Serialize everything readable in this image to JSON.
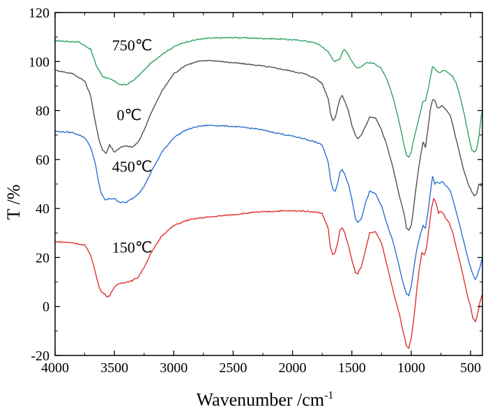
{
  "chart_data": {
    "type": "line",
    "title": "",
    "xlabel": "Wavenumber /cm",
    "xlabel_superscript": "-1",
    "ylabel": "T /%",
    "xlim": [
      4000,
      400
    ],
    "ylim": [
      -20,
      120
    ],
    "x_ticks": [
      "4000",
      "3500",
      "3000",
      "2500",
      "2000",
      "1500",
      "1000",
      "500"
    ],
    "y_ticks": [
      "-20",
      "0",
      "20",
      "40",
      "60",
      "80",
      "100",
      "120"
    ],
    "grid": false,
    "series": [
      {
        "name": "750℃",
        "color": "#2ca25f",
        "points": [
          [
            4000,
            108.5
          ],
          [
            3800,
            108
          ],
          [
            3700,
            105
          ],
          [
            3650,
            98
          ],
          [
            3600,
            94
          ],
          [
            3550,
            93
          ],
          [
            3500,
            92
          ],
          [
            3450,
            90.5
          ],
          [
            3400,
            90.5
          ],
          [
            3350,
            92
          ],
          [
            3300,
            94
          ],
          [
            3200,
            99
          ],
          [
            3100,
            103
          ],
          [
            3000,
            106
          ],
          [
            2900,
            108
          ],
          [
            2800,
            109
          ],
          [
            2700,
            109.5
          ],
          [
            2500,
            109.8
          ],
          [
            2300,
            109.5
          ],
          [
            2100,
            109.2
          ],
          [
            1900,
            108.5
          ],
          [
            1800,
            107.5
          ],
          [
            1750,
            106
          ],
          [
            1700,
            104
          ],
          [
            1660,
            101
          ],
          [
            1640,
            100
          ],
          [
            1600,
            101
          ],
          [
            1580,
            104
          ],
          [
            1560,
            105
          ],
          [
            1530,
            103
          ],
          [
            1500,
            100
          ],
          [
            1470,
            98
          ],
          [
            1450,
            97.5
          ],
          [
            1420,
            98
          ],
          [
            1380,
            99.5
          ],
          [
            1350,
            99.5
          ],
          [
            1300,
            99
          ],
          [
            1250,
            97
          ],
          [
            1200,
            92
          ],
          [
            1150,
            85
          ],
          [
            1100,
            75
          ],
          [
            1060,
            66
          ],
          [
            1040,
            62
          ],
          [
            1020,
            61
          ],
          [
            1000,
            63
          ],
          [
            980,
            68
          ],
          [
            950,
            74
          ],
          [
            920,
            80
          ],
          [
            900,
            84
          ],
          [
            880,
            84
          ],
          [
            860,
            88
          ],
          [
            840,
            93
          ],
          [
            820,
            98
          ],
          [
            800,
            97
          ],
          [
            780,
            96
          ],
          [
            760,
            95.5
          ],
          [
            740,
            96
          ],
          [
            720,
            96.5
          ],
          [
            700,
            96
          ],
          [
            680,
            95
          ],
          [
            650,
            94
          ],
          [
            620,
            91
          ],
          [
            600,
            88
          ],
          [
            560,
            80
          ],
          [
            530,
            73
          ],
          [
            510,
            68
          ],
          [
            490,
            64
          ],
          [
            470,
            63
          ],
          [
            450,
            64
          ],
          [
            430,
            69
          ],
          [
            410,
            78
          ],
          [
            400,
            80
          ]
        ]
      },
      {
        "name": "0℃",
        "color": "#505050",
        "points": [
          [
            4000,
            96.5
          ],
          [
            3850,
            95
          ],
          [
            3750,
            92
          ],
          [
            3700,
            86
          ],
          [
            3660,
            75
          ],
          [
            3630,
            68
          ],
          [
            3600,
            64
          ],
          [
            3570,
            62.5
          ],
          [
            3540,
            66
          ],
          [
            3500,
            63
          ],
          [
            3450,
            65
          ],
          [
            3400,
            65.5
          ],
          [
            3350,
            65
          ],
          [
            3300,
            67
          ],
          [
            3250,
            72
          ],
          [
            3200,
            78
          ],
          [
            3100,
            88
          ],
          [
            3000,
            95
          ],
          [
            2900,
            98.5
          ],
          [
            2800,
            100
          ],
          [
            2700,
            100.5
          ],
          [
            2500,
            99.5
          ],
          [
            2300,
            98.5
          ],
          [
            2100,
            97
          ],
          [
            1900,
            95
          ],
          [
            1800,
            93
          ],
          [
            1750,
            91
          ],
          [
            1700,
            85
          ],
          [
            1680,
            79
          ],
          [
            1660,
            76
          ],
          [
            1640,
            77
          ],
          [
            1620,
            81
          ],
          [
            1600,
            85
          ],
          [
            1580,
            86
          ],
          [
            1560,
            84
          ],
          [
            1530,
            80
          ],
          [
            1500,
            74
          ],
          [
            1470,
            70
          ],
          [
            1450,
            68.5
          ],
          [
            1420,
            70
          ],
          [
            1380,
            74
          ],
          [
            1350,
            77.5
          ],
          [
            1300,
            77
          ],
          [
            1250,
            72
          ],
          [
            1200,
            65
          ],
          [
            1150,
            56
          ],
          [
            1100,
            45
          ],
          [
            1060,
            38
          ],
          [
            1040,
            32
          ],
          [
            1020,
            31
          ],
          [
            1000,
            33
          ],
          [
            980,
            40
          ],
          [
            950,
            52
          ],
          [
            920,
            62
          ],
          [
            900,
            67
          ],
          [
            880,
            65
          ],
          [
            860,
            72
          ],
          [
            840,
            80
          ],
          [
            820,
            84.5
          ],
          [
            800,
            84
          ],
          [
            780,
            81
          ],
          [
            760,
            81
          ],
          [
            740,
            82
          ],
          [
            720,
            81
          ],
          [
            700,
            80
          ],
          [
            670,
            78
          ],
          [
            640,
            72
          ],
          [
            600,
            64
          ],
          [
            560,
            56
          ],
          [
            520,
            50
          ],
          [
            500,
            48
          ],
          [
            470,
            45
          ],
          [
            450,
            46
          ],
          [
            430,
            50
          ],
          [
            410,
            49
          ],
          [
            400,
            50
          ]
        ]
      },
      {
        "name": "450℃",
        "color": "#2b6fd1",
        "points": [
          [
            4000,
            71.5
          ],
          [
            3850,
            71
          ],
          [
            3750,
            69
          ],
          [
            3700,
            65
          ],
          [
            3660,
            58
          ],
          [
            3630,
            50
          ],
          [
            3610,
            46
          ],
          [
            3580,
            43.5
          ],
          [
            3540,
            44
          ],
          [
            3500,
            44
          ],
          [
            3450,
            42.5
          ],
          [
            3400,
            42.5
          ],
          [
            3350,
            44
          ],
          [
            3300,
            46
          ],
          [
            3250,
            49
          ],
          [
            3200,
            54
          ],
          [
            3100,
            63
          ],
          [
            3000,
            69
          ],
          [
            2900,
            72
          ],
          [
            2800,
            73.5
          ],
          [
            2700,
            74
          ],
          [
            2500,
            73.5
          ],
          [
            2300,
            72.5
          ],
          [
            2100,
            70.5
          ],
          [
            1900,
            68.5
          ],
          [
            1800,
            67
          ],
          [
            1750,
            66
          ],
          [
            1700,
            59
          ],
          [
            1680,
            52
          ],
          [
            1660,
            48
          ],
          [
            1640,
            47
          ],
          [
            1620,
            50
          ],
          [
            1600,
            55
          ],
          [
            1580,
            56
          ],
          [
            1560,
            54
          ],
          [
            1530,
            50
          ],
          [
            1500,
            44
          ],
          [
            1470,
            36
          ],
          [
            1450,
            34.5
          ],
          [
            1420,
            36
          ],
          [
            1380,
            43
          ],
          [
            1350,
            47
          ],
          [
            1300,
            46
          ],
          [
            1250,
            41
          ],
          [
            1200,
            33
          ],
          [
            1150,
            26
          ],
          [
            1100,
            16
          ],
          [
            1060,
            8
          ],
          [
            1040,
            5
          ],
          [
            1020,
            4.5
          ],
          [
            1000,
            8
          ],
          [
            980,
            15
          ],
          [
            950,
            24
          ],
          [
            920,
            30
          ],
          [
            900,
            33
          ],
          [
            880,
            32
          ],
          [
            860,
            38
          ],
          [
            840,
            46
          ],
          [
            820,
            53
          ],
          [
            800,
            50
          ],
          [
            780,
            51
          ],
          [
            760,
            50
          ],
          [
            740,
            51
          ],
          [
            720,
            50
          ],
          [
            700,
            49
          ],
          [
            670,
            47
          ],
          [
            640,
            42
          ],
          [
            600,
            35
          ],
          [
            560,
            27
          ],
          [
            520,
            19
          ],
          [
            500,
            16
          ],
          [
            480,
            13
          ],
          [
            460,
            11
          ],
          [
            440,
            13
          ],
          [
            420,
            16
          ],
          [
            400,
            20
          ]
        ]
      },
      {
        "name": "150℃",
        "color": "#e03030",
        "points": [
          [
            4000,
            26.5
          ],
          [
            3850,
            26
          ],
          [
            3750,
            25
          ],
          [
            3700,
            21
          ],
          [
            3660,
            14
          ],
          [
            3630,
            8
          ],
          [
            3610,
            6
          ],
          [
            3580,
            5
          ],
          [
            3560,
            4
          ],
          [
            3540,
            4.5
          ],
          [
            3500,
            8
          ],
          [
            3450,
            9.5
          ],
          [
            3400,
            10
          ],
          [
            3350,
            10.5
          ],
          [
            3300,
            12
          ],
          [
            3250,
            16
          ],
          [
            3200,
            21
          ],
          [
            3100,
            29
          ],
          [
            3000,
            33
          ],
          [
            2900,
            35
          ],
          [
            2800,
            36
          ],
          [
            2700,
            36.5
          ],
          [
            2500,
            37.5
          ],
          [
            2300,
            38.5
          ],
          [
            2100,
            39
          ],
          [
            1900,
            39
          ],
          [
            1800,
            38.5
          ],
          [
            1750,
            38
          ],
          [
            1700,
            32
          ],
          [
            1680,
            24
          ],
          [
            1660,
            21
          ],
          [
            1640,
            22
          ],
          [
            1620,
            26
          ],
          [
            1600,
            31
          ],
          [
            1580,
            32
          ],
          [
            1560,
            30
          ],
          [
            1530,
            25
          ],
          [
            1500,
            19
          ],
          [
            1470,
            14
          ],
          [
            1450,
            13.5
          ],
          [
            1420,
            16
          ],
          [
            1380,
            24
          ],
          [
            1350,
            30
          ],
          [
            1300,
            30.5
          ],
          [
            1250,
            26
          ],
          [
            1200,
            16
          ],
          [
            1150,
            6
          ],
          [
            1100,
            -3
          ],
          [
            1060,
            -12
          ],
          [
            1040,
            -16
          ],
          [
            1020,
            -17
          ],
          [
            1000,
            -13
          ],
          [
            980,
            -6
          ],
          [
            950,
            8
          ],
          [
            930,
            16
          ],
          [
            910,
            22
          ],
          [
            890,
            21
          ],
          [
            870,
            24
          ],
          [
            850,
            32
          ],
          [
            830,
            40
          ],
          [
            810,
            44
          ],
          [
            790,
            42
          ],
          [
            770,
            38
          ],
          [
            750,
            39
          ],
          [
            730,
            38
          ],
          [
            710,
            36
          ],
          [
            680,
            34
          ],
          [
            650,
            30
          ],
          [
            620,
            24
          ],
          [
            600,
            20
          ],
          [
            560,
            12
          ],
          [
            520,
            3
          ],
          [
            500,
            0
          ],
          [
            480,
            -5
          ],
          [
            460,
            -6
          ],
          [
            440,
            -3
          ],
          [
            420,
            2
          ],
          [
            400,
            5
          ]
        ]
      }
    ],
    "annotations": [
      {
        "text": "750℃",
        "x": 3520,
        "y": 104.5
      },
      {
        "text": "0℃",
        "x": 3480,
        "y": 76
      },
      {
        "text": "450℃",
        "x": 3520,
        "y": 55
      },
      {
        "text": "150℃",
        "x": 3520,
        "y": 22
      }
    ]
  }
}
